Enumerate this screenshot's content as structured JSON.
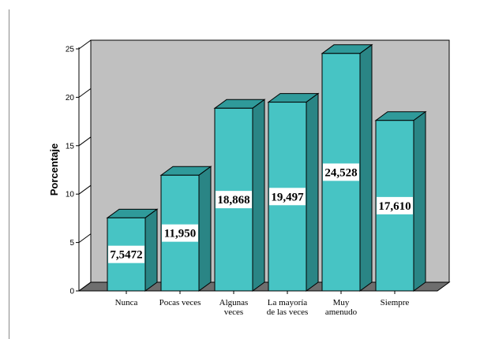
{
  "chart_data": {
    "type": "bar",
    "categories": [
      "Nunca",
      "Pocas veces",
      "Algunas veces",
      "La mayoría de las veces",
      "Muy amenudo",
      "Siempre"
    ],
    "category_lines": [
      [
        "Nunca"
      ],
      [
        "Pocas veces"
      ],
      [
        "Algunas",
        "veces"
      ],
      [
        "La mayoría",
        "de las veces"
      ],
      [
        "Muy",
        "amenudo"
      ],
      [
        "Siempre"
      ]
    ],
    "values": [
      7.5472,
      11.95,
      18.868,
      19.497,
      24.528,
      17.61
    ],
    "data_labels": [
      "7,5472",
      "11,950",
      "18,868",
      "19,497",
      "24,528",
      "17,610"
    ],
    "title": "",
    "xlabel": "",
    "ylabel": "Porcentaje",
    "ylim": [
      0,
      25
    ],
    "yticks": [
      0,
      5,
      10,
      15,
      20,
      25
    ],
    "grid": false,
    "style": "3d",
    "colors": {
      "bar_front": "#47c4c4",
      "bar_top": "#2f9a9a",
      "bar_side": "#2a8585",
      "plot_back": "#c0c0c0",
      "plot_floor": "#6e6e6e"
    }
  }
}
